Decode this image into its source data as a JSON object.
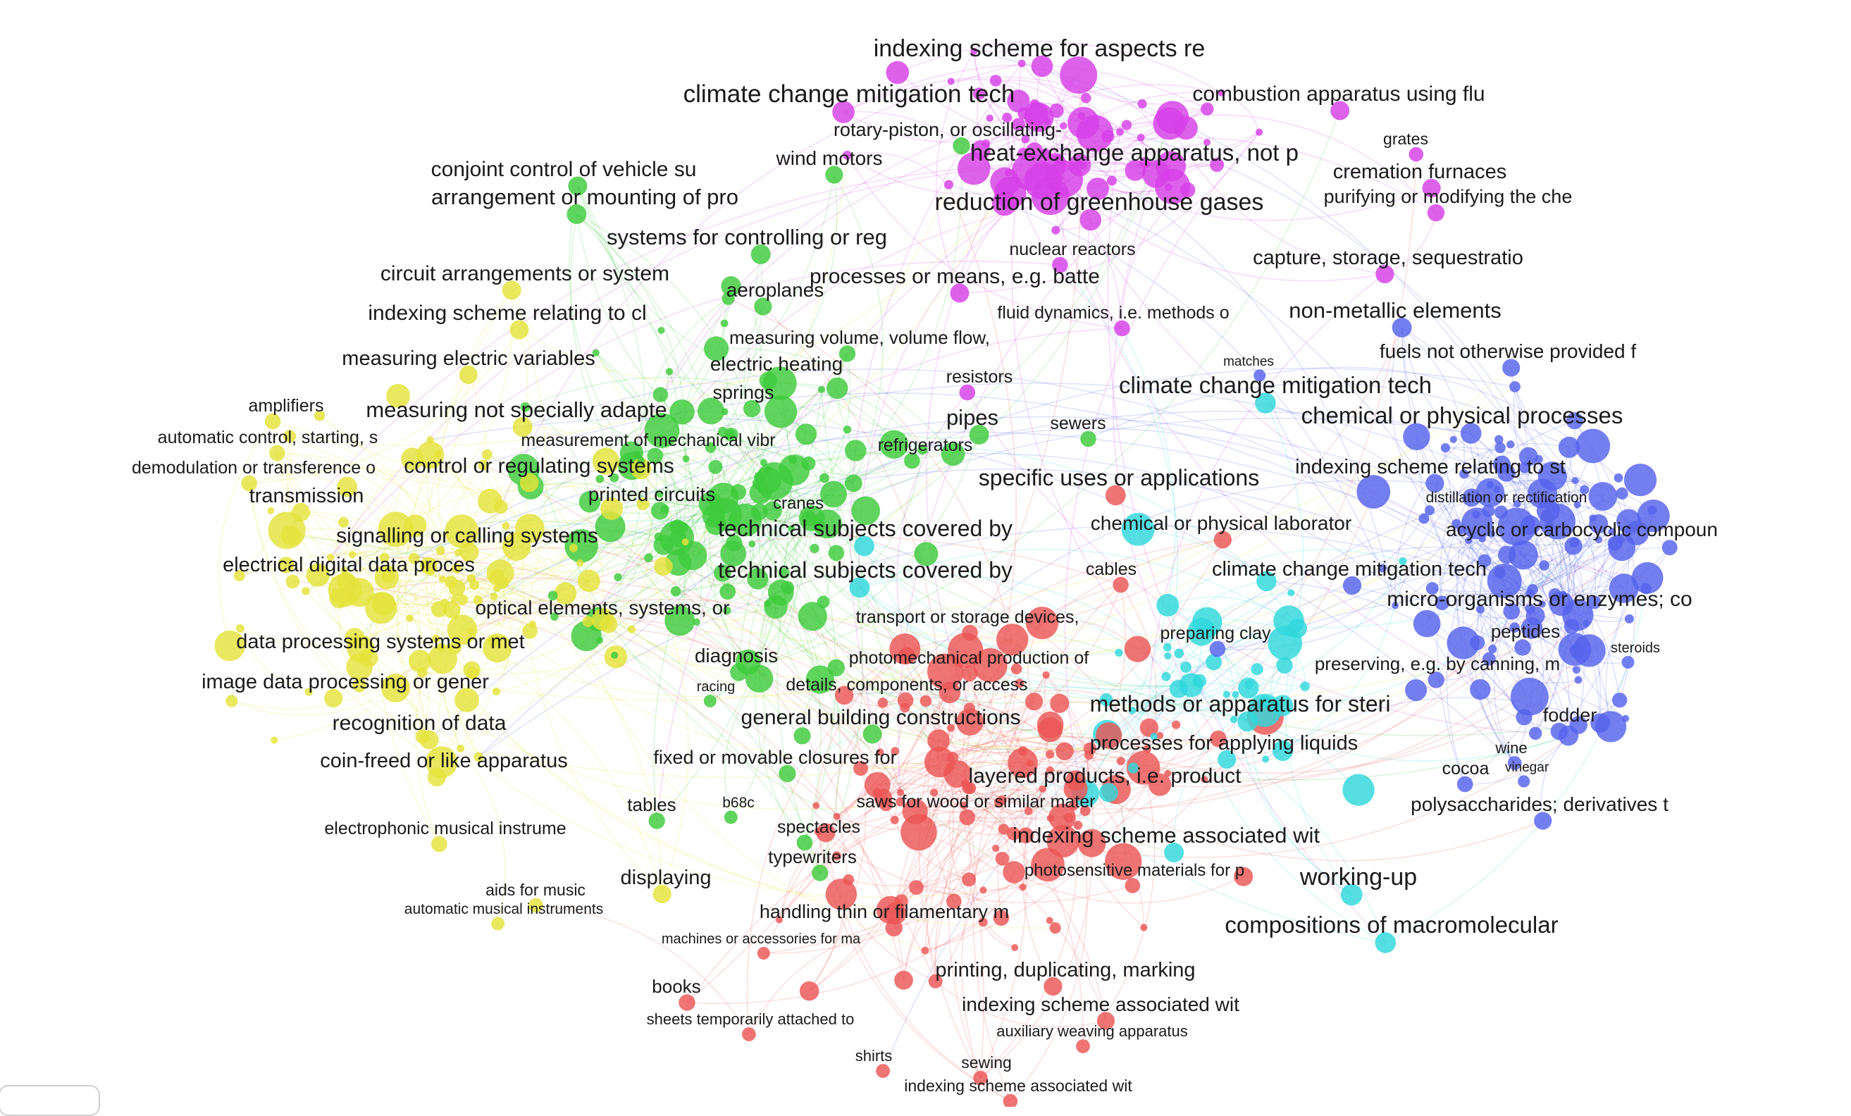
{
  "colors": {
    "magenta": "#d53fe6",
    "green": "#3ecb3c",
    "yellow": "#e4e33a",
    "blue": "#5563ec",
    "red": "#ec5555",
    "cyan": "#2fd8dc"
  },
  "labels": [
    {
      "text": "indexing scheme for aspects re",
      "cluster": "magenta"
    },
    {
      "text": "climate change mitigation tech",
      "cluster": "magenta"
    },
    {
      "text": "combustion apparatus using flu",
      "cluster": "magenta"
    },
    {
      "text": "rotary-piston, or oscillating-",
      "cluster": "green"
    },
    {
      "text": "wind motors",
      "cluster": "green"
    },
    {
      "text": "heat-exchange apparatus, not p",
      "cluster": "magenta"
    },
    {
      "text": "grates",
      "cluster": "magenta"
    },
    {
      "text": "cremation furnaces",
      "cluster": "magenta"
    },
    {
      "text": "purifying or modifying the che",
      "cluster": "magenta"
    },
    {
      "text": "conjoint control of vehicle su",
      "cluster": "green"
    },
    {
      "text": "arrangement or mounting of pro",
      "cluster": "green"
    },
    {
      "text": "reduction of greenhouse gases",
      "cluster": "magenta"
    },
    {
      "text": "systems for controlling or reg",
      "cluster": "green"
    },
    {
      "text": "nuclear reactors",
      "cluster": "magenta"
    },
    {
      "text": "capture, storage, sequestratio",
      "cluster": "magenta"
    },
    {
      "text": "circuit arrangements or system",
      "cluster": "yellow"
    },
    {
      "text": "aeroplanes",
      "cluster": "green"
    },
    {
      "text": "processes or means, e.g. batte",
      "cluster": "magenta"
    },
    {
      "text": "indexing scheme relating to cl",
      "cluster": "yellow"
    },
    {
      "text": "fluid dynamics, i.e. methods o",
      "cluster": "magenta"
    },
    {
      "text": "non-metallic elements",
      "cluster": "blue"
    },
    {
      "text": "measuring volume, volume flow,",
      "cluster": "green"
    },
    {
      "text": "fuels not otherwise provided f",
      "cluster": "blue"
    },
    {
      "text": "measuring electric variables",
      "cluster": "yellow"
    },
    {
      "text": "electric heating",
      "cluster": "green"
    },
    {
      "text": "matches",
      "cluster": "blue"
    },
    {
      "text": "resistors",
      "cluster": "magenta"
    },
    {
      "text": "springs",
      "cluster": "green"
    },
    {
      "text": "climate change mitigation tech",
      "cluster": "cyan"
    },
    {
      "text": "amplifiers",
      "cluster": "yellow"
    },
    {
      "text": "measuring not specially adapte",
      "cluster": "yellow"
    },
    {
      "text": "pipes",
      "cluster": "green"
    },
    {
      "text": "sewers",
      "cluster": "green"
    },
    {
      "text": "chemical or physical processes",
      "cluster": "blue"
    },
    {
      "text": "automatic control, starting, s",
      "cluster": "yellow"
    },
    {
      "text": "measurement of mechanical vibr",
      "cluster": "green"
    },
    {
      "text": "refrigerators",
      "cluster": "green"
    },
    {
      "text": "demodulation or transference o",
      "cluster": "yellow"
    },
    {
      "text": "control or regulating systems",
      "cluster": "yellow"
    },
    {
      "text": "indexing scheme relating to st",
      "cluster": "blue"
    },
    {
      "text": "specific uses or applications",
      "cluster": "red"
    },
    {
      "text": "transmission",
      "cluster": "yellow"
    },
    {
      "text": "printed circuits",
      "cluster": "green"
    },
    {
      "text": "distillation or rectification",
      "cluster": "blue"
    },
    {
      "text": "cranes",
      "cluster": "green"
    },
    {
      "text": "chemical or physical laborator",
      "cluster": "red"
    },
    {
      "text": "acyclic or carbocyclic compoun",
      "cluster": "blue"
    },
    {
      "text": "technical subjects covered by",
      "cluster": "cyan"
    },
    {
      "text": "signalling or calling systems",
      "cluster": "yellow"
    },
    {
      "text": "electrical digital data proces",
      "cluster": "yellow"
    },
    {
      "text": "technical subjects covered by",
      "cluster": "cyan"
    },
    {
      "text": "cables",
      "cluster": "red"
    },
    {
      "text": "climate change mitigation tech",
      "cluster": "blue"
    },
    {
      "text": "micro-organisms or enzymes; co",
      "cluster": "blue"
    },
    {
      "text": "optical elements, systems, or",
      "cluster": "yellow"
    },
    {
      "text": "transport or storage devices,",
      "cluster": "red"
    },
    {
      "text": "peptides",
      "cluster": "blue"
    },
    {
      "text": "preparing clay",
      "cluster": "blue"
    },
    {
      "text": "steroids",
      "cluster": "blue"
    },
    {
      "text": "data processing systems or met",
      "cluster": "yellow"
    },
    {
      "text": "diagnosis",
      "cluster": "green"
    },
    {
      "text": "photomechanical production of",
      "cluster": "red"
    },
    {
      "text": "preserving, e.g. by canning, m",
      "cluster": "blue"
    },
    {
      "text": "racing",
      "cluster": "green"
    },
    {
      "text": "details, components, or access",
      "cluster": "red"
    },
    {
      "text": "image data processing or gener",
      "cluster": "yellow"
    },
    {
      "text": "methods or apparatus for steri",
      "cluster": "cyan"
    },
    {
      "text": "general building constructions",
      "cluster": "green"
    },
    {
      "text": "fodder",
      "cluster": "blue"
    },
    {
      "text": "recognition of data",
      "cluster": "yellow"
    },
    {
      "text": "processes for applying liquids",
      "cluster": "cyan"
    },
    {
      "text": "wine",
      "cluster": "blue"
    },
    {
      "text": "fixed or movable closures for",
      "cluster": "green"
    },
    {
      "text": "coin-freed or like apparatus",
      "cluster": "yellow"
    },
    {
      "text": "cocoa",
      "cluster": "blue"
    },
    {
      "text": "vinegar",
      "cluster": "blue"
    },
    {
      "text": "layered products, i.e. product",
      "cluster": "cyan"
    },
    {
      "text": "tables",
      "cluster": "green"
    },
    {
      "text": "b68c",
      "cluster": "green"
    },
    {
      "text": "saws for wood or similar mater",
      "cluster": "red"
    },
    {
      "text": "polysaccharides; derivatives t",
      "cluster": "blue"
    },
    {
      "text": "spectacles",
      "cluster": "green"
    },
    {
      "text": "electrophonic musical instrume",
      "cluster": "yellow"
    },
    {
      "text": "indexing scheme associated wit",
      "cluster": "cyan"
    },
    {
      "text": "typewriters",
      "cluster": "green"
    },
    {
      "text": "photosensitive materials for p",
      "cluster": "red"
    },
    {
      "text": "displaying",
      "cluster": "yellow"
    },
    {
      "text": "aids for music",
      "cluster": "yellow"
    },
    {
      "text": "working-up",
      "cluster": "cyan"
    },
    {
      "text": "automatic musical instruments",
      "cluster": "yellow"
    },
    {
      "text": "handling thin or filamentary m",
      "cluster": "red"
    },
    {
      "text": "compositions of macromolecular",
      "cluster": "cyan"
    },
    {
      "text": "machines or accessories for ma",
      "cluster": "red"
    },
    {
      "text": "printing, duplicating, marking",
      "cluster": "red"
    },
    {
      "text": "books",
      "cluster": "red"
    },
    {
      "text": "indexing scheme associated wit",
      "cluster": "red"
    },
    {
      "text": "sheets temporarily attached to",
      "cluster": "red"
    },
    {
      "text": "auxiliary weaving apparatus",
      "cluster": "red"
    },
    {
      "text": "shirts",
      "cluster": "red"
    },
    {
      "text": "sewing",
      "cluster": "red"
    },
    {
      "text": "indexing scheme associated wit",
      "cluster": "red"
    }
  ]
}
